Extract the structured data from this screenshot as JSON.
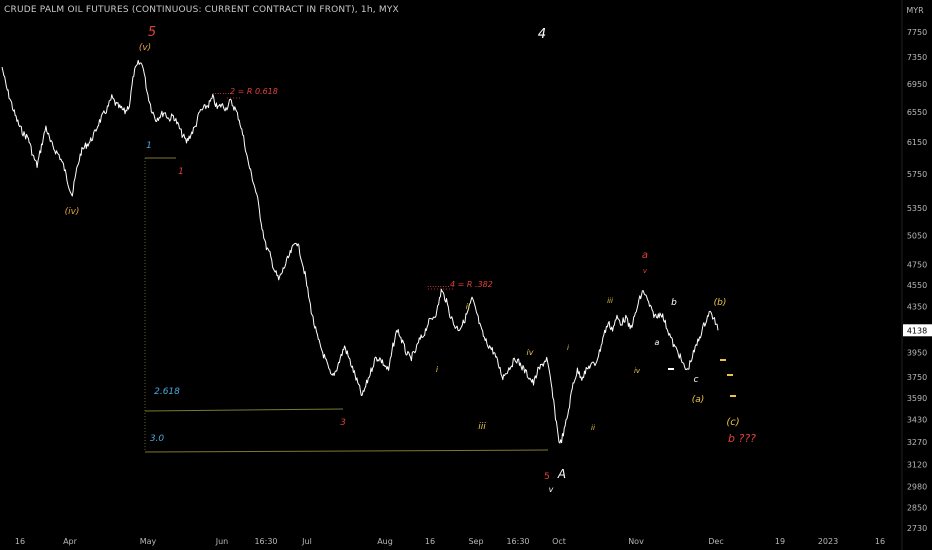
{
  "header": {
    "title": "CRUDE PALM OIL FUTURES (CONTINUOUS: CURRENT CONTRACT IN FRONT), 1h, MYX",
    "currency": "MYR",
    "last_price": "4138"
  },
  "colors": {
    "background": "#000000",
    "price": "#ffffff",
    "axis_text": "#b8b8b8",
    "red": "#e0413a",
    "orange": "#e0a040",
    "yellow": "#e8c547",
    "blue": "#4aa8d8",
    "fib_line": "#7a7a30"
  },
  "chart_data": {
    "type": "line",
    "title": "CRUDE PALM OIL FUTURES (CONTINUOUS: CURRENT CONTRACT IN FRONT), 1h, MYX",
    "y_unit": "MYR",
    "y_scale": "log",
    "ylim": [
      2650,
      8000
    ],
    "x_ticks": [
      "16",
      "Apr",
      "May",
      "Jun",
      "16:30",
      "Jul",
      "Aug",
      "16",
      "Sep",
      "16:30",
      "Oct",
      "Nov",
      "Dec",
      "19",
      "2023",
      "16"
    ],
    "y_ticks": [
      2730,
      2850,
      2980,
      3120,
      3270,
      3430,
      3590,
      3750,
      3950,
      4138,
      4350,
      4550,
      4750,
      5050,
      5350,
      5750,
      6150,
      6550,
      6950,
      7350,
      7750
    ],
    "series": [
      {
        "values": [
          7200,
          6900,
          6700,
          6500,
          6350,
          6250,
          6200,
          5980,
          5850,
          6100,
          6350,
          6150,
          6050,
          5980,
          5850,
          5650,
          5500,
          5800,
          6020,
          6100,
          6150,
          6250,
          6400,
          6500,
          6600,
          6750,
          6650,
          6600,
          6550,
          6650,
          7100,
          7250,
          7250,
          6850,
          6600,
          6450,
          6500,
          6550,
          6450,
          6500,
          6380,
          6250,
          6150,
          6250,
          6350,
          6550,
          6600,
          6650,
          6750,
          6600,
          6650,
          6600,
          6700,
          6600,
          6450,
          6200,
          5900,
          5700,
          5500,
          5200,
          4950,
          4850,
          4700,
          4600,
          4700,
          4800,
          4900,
          5000,
          4850,
          4650,
          4400,
          4200,
          4050,
          3950,
          3850,
          3750,
          3800,
          3900,
          4000,
          3900,
          3800,
          3700,
          3600,
          3700,
          3800,
          3900,
          3900,
          3850,
          3800,
          4000,
          4150,
          4050,
          3950,
          3900,
          3950,
          4050,
          4100,
          4200,
          4250,
          4300,
          4500,
          4420,
          4280,
          4180,
          4150,
          4200,
          4300,
          4420,
          4300,
          4150,
          4050,
          4000,
          3950,
          3850,
          3750,
          3800,
          3850,
          3900,
          3850,
          3800,
          3750,
          3700,
          3800,
          3850,
          3900,
          3700,
          3450,
          3250,
          3350,
          3500,
          3700,
          3800,
          3750,
          3800,
          3850,
          3850,
          3950,
          4100,
          4200,
          4150,
          4250,
          4200,
          4250,
          4150,
          4250,
          4400,
          4500,
          4400,
          4300,
          4250,
          4300,
          4200,
          4100,
          4000,
          3950,
          3850,
          3800,
          3900,
          4000,
          4100,
          4200,
          4300,
          4250,
          4138
        ]
      }
    ],
    "annotations": [
      {
        "text": "5",
        "color": "red"
      },
      {
        "text": "(v)",
        "color": "orange"
      },
      {
        "text": "(iv)",
        "color": "orange"
      },
      {
        "text": "4",
        "color": "white"
      },
      {
        "text": "1",
        "color": "blue"
      },
      {
        "text": "1",
        "color": "red"
      },
      {
        "text": ".......2 = R 0.618",
        "color": "red"
      },
      {
        "text": "2.618",
        "color": "blue"
      },
      {
        "text": "3.0",
        "color": "blue"
      },
      {
        "text": "3",
        "color": "red"
      },
      {
        "text": ".........4 = R .382",
        "color": "red"
      },
      {
        "text": "ii",
        "color": "yellow"
      },
      {
        "text": "i",
        "color": "yellow"
      },
      {
        "text": "iii",
        "color": "yellow"
      },
      {
        "text": "iv",
        "color": "yellow"
      },
      {
        "text": "v",
        "color": "white"
      },
      {
        "text": "5",
        "color": "red"
      },
      {
        "text": "A",
        "color": "white"
      },
      {
        "text": "i",
        "color": "yellow"
      },
      {
        "text": "ii",
        "color": "yellow"
      },
      {
        "text": "iii",
        "color": "yellow"
      },
      {
        "text": "iv",
        "color": "yellow"
      },
      {
        "text": "a",
        "color": "red"
      },
      {
        "text": "v",
        "color": "red"
      },
      {
        "text": "b",
        "color": "white"
      },
      {
        "text": "a",
        "color": "white"
      },
      {
        "text": "c",
        "color": "white"
      },
      {
        "text": "(b)",
        "color": "yellow"
      },
      {
        "text": "(a)",
        "color": "yellow"
      },
      {
        "text": "(c)",
        "color": "yellow"
      },
      {
        "text": "b ???",
        "color": "red"
      }
    ]
  }
}
